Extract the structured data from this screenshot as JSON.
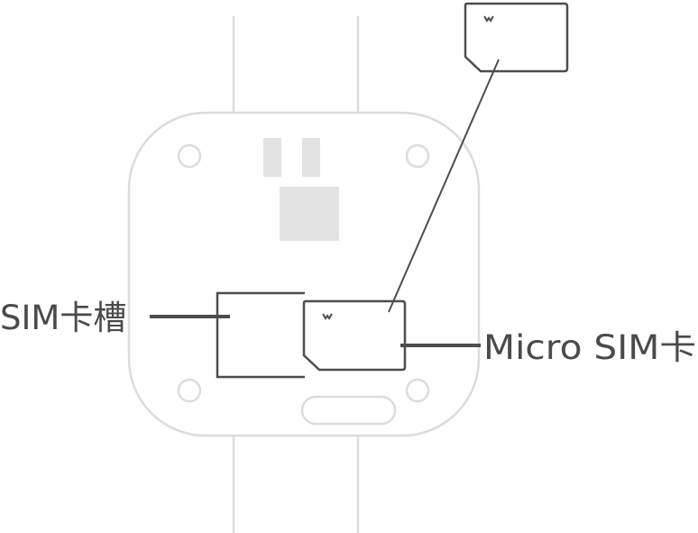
{
  "labels": {
    "sim_slot": "SIM卡槽",
    "micro_sim": "Micro SIM卡"
  },
  "colors": {
    "device_outline": "#dcdcdc",
    "device_fill": "#e3e3e3",
    "line": "#4d4d4d",
    "text": "#4a4a4a"
  }
}
